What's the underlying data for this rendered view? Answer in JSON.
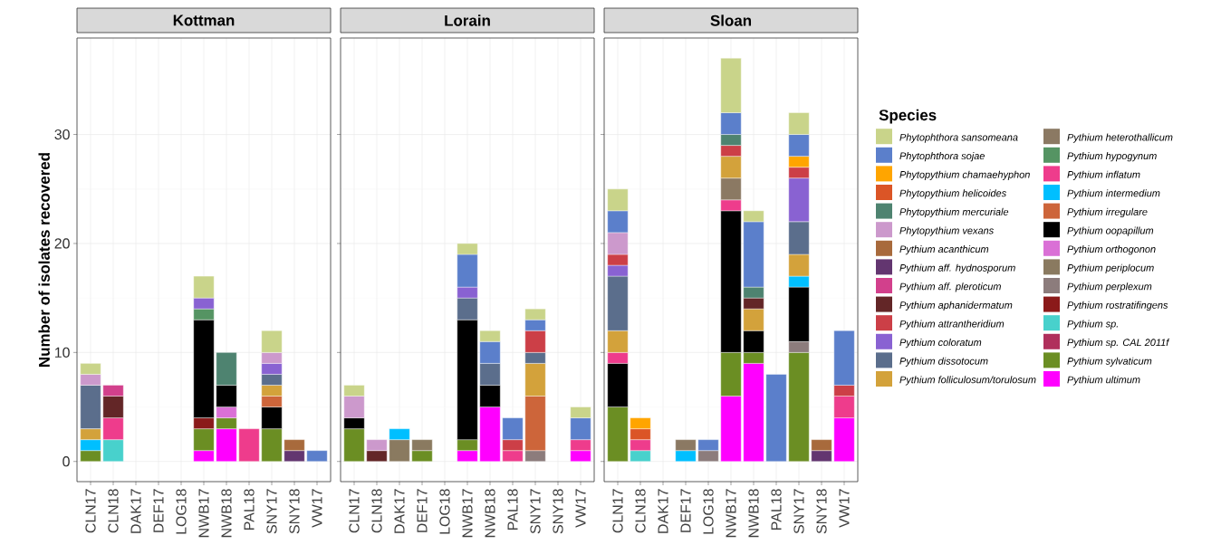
{
  "chart_data": [
    {
      "type": "bar",
      "title": "Kottman",
      "ylabel": "Number of isolates recovered",
      "stacked": true,
      "grid": true,
      "ylim": [
        -1.85,
        38.85
      ],
      "yticks": [
        0,
        10,
        20,
        30
      ],
      "categories": [
        "CLN17",
        "CLN18",
        "DAK17",
        "DEF17",
        "LOG18",
        "NWB17",
        "NWB18",
        "PAL18",
        "SNY17",
        "SNY18",
        "VW17"
      ],
      "series": [
        {
          "color": "#ff00ff",
          "values": [
            null,
            null,
            null,
            null,
            null,
            1,
            3,
            null,
            null,
            null,
            null
          ]
        },
        {
          "color": "#6b8e23",
          "values": [
            1,
            null,
            null,
            null,
            null,
            2,
            1,
            null,
            3,
            null,
            null
          ]
        },
        {
          "color": "#48d1cc",
          "values": [
            null,
            2,
            null,
            null,
            null,
            null,
            null,
            null,
            null,
            null,
            null
          ]
        },
        {
          "color": "#8b1a1a",
          "values": [
            null,
            null,
            null,
            null,
            null,
            1,
            null,
            null,
            null,
            null,
            null
          ]
        },
        {
          "color": "#da70d6",
          "values": [
            null,
            null,
            null,
            null,
            null,
            null,
            1,
            null,
            null,
            null,
            null
          ]
        },
        {
          "color": "#000000",
          "values": [
            null,
            null,
            null,
            null,
            null,
            9,
            2,
            null,
            2,
            null,
            null
          ]
        },
        {
          "color": "#cd653a",
          "values": [
            null,
            null,
            null,
            null,
            null,
            null,
            null,
            null,
            1,
            null,
            null
          ]
        },
        {
          "color": "#00bfff",
          "values": [
            1,
            null,
            null,
            null,
            null,
            null,
            null,
            null,
            null,
            null,
            null
          ]
        },
        {
          "color": "#ee3c8c",
          "values": [
            null,
            2,
            null,
            null,
            null,
            null,
            null,
            3,
            null,
            null,
            null
          ]
        },
        {
          "color": "#559463",
          "values": [
            null,
            null,
            null,
            null,
            null,
            1,
            null,
            null,
            null,
            null,
            null
          ]
        },
        {
          "color": "#d3a23b",
          "values": [
            1,
            null,
            null,
            null,
            null,
            null,
            null,
            null,
            1,
            null,
            null
          ]
        },
        {
          "color": "#5b6e8c",
          "values": [
            4,
            null,
            null,
            null,
            null,
            null,
            null,
            null,
            1,
            null,
            null
          ]
        },
        {
          "color": "#8962d2",
          "values": [
            null,
            null,
            null,
            null,
            null,
            1,
            null,
            null,
            1,
            null,
            null
          ]
        },
        {
          "color": "#632627",
          "values": [
            null,
            2,
            null,
            null,
            null,
            null,
            null,
            null,
            null,
            null,
            null
          ]
        },
        {
          "color": "#d2408c",
          "values": [
            null,
            1,
            null,
            null,
            null,
            null,
            null,
            null,
            null,
            null,
            null
          ]
        },
        {
          "color": "#633670",
          "values": [
            null,
            null,
            null,
            null,
            null,
            null,
            null,
            null,
            null,
            1,
            null
          ]
        },
        {
          "color": "#a86a3c",
          "values": [
            null,
            null,
            null,
            null,
            null,
            null,
            null,
            null,
            null,
            1,
            null
          ]
        },
        {
          "color": "#cc99cc",
          "values": [
            1,
            null,
            null,
            null,
            null,
            null,
            null,
            null,
            1,
            null,
            null
          ]
        },
        {
          "color": "#4e8370",
          "values": [
            null,
            null,
            null,
            null,
            null,
            null,
            3,
            null,
            null,
            null,
            null
          ]
        },
        {
          "color": "#5b7fcb",
          "values": [
            null,
            null,
            null,
            null,
            null,
            null,
            null,
            null,
            null,
            null,
            1
          ]
        },
        {
          "color": "#c9d48a",
          "values": [
            1,
            null,
            null,
            null,
            null,
            2,
            null,
            null,
            2,
            null,
            null
          ]
        }
      ]
    },
    {
      "type": "bar",
      "title": "Lorain",
      "stacked": true,
      "grid": true,
      "tick_labels": "x",
      "ylim": [
        -1.85,
        38.85
      ],
      "yticks": [
        0,
        10,
        20,
        30
      ],
      "categories": [
        "CLN17",
        "CLN18",
        "DAK17",
        "DEF17",
        "LOG18",
        "NWB17",
        "NWB18",
        "PAL18",
        "SNY17",
        "SNY18",
        "VW17"
      ],
      "series": [
        {
          "color": "#ff00ff",
          "values": [
            null,
            null,
            null,
            null,
            null,
            1,
            5,
            null,
            null,
            null,
            1
          ]
        },
        {
          "color": "#6b8e23",
          "values": [
            3,
            null,
            null,
            1,
            null,
            1,
            null,
            null,
            null,
            null,
            null
          ]
        },
        {
          "color": "#8c7c7c",
          "values": [
            null,
            null,
            null,
            null,
            null,
            null,
            null,
            null,
            1,
            null,
            null
          ]
        },
        {
          "color": "#8a7a60",
          "values": [
            null,
            null,
            2,
            1,
            null,
            null,
            null,
            null,
            null,
            null,
            null
          ]
        },
        {
          "color": "#000000",
          "values": [
            1,
            null,
            null,
            null,
            null,
            11,
            2,
            null,
            null,
            null,
            null
          ]
        },
        {
          "color": "#cd653a",
          "values": [
            null,
            null,
            null,
            null,
            null,
            null,
            null,
            null,
            5,
            null,
            null
          ]
        },
        {
          "color": "#00bfff",
          "values": [
            null,
            null,
            1,
            null,
            null,
            null,
            null,
            null,
            null,
            null,
            null
          ]
        },
        {
          "color": "#ee3c8c",
          "values": [
            null,
            null,
            null,
            null,
            null,
            null,
            null,
            1,
            null,
            null,
            1
          ]
        },
        {
          "color": "#d3a23b",
          "values": [
            null,
            null,
            null,
            null,
            null,
            null,
            null,
            null,
            3,
            null,
            null
          ]
        },
        {
          "color": "#5b6e8c",
          "values": [
            null,
            null,
            null,
            null,
            null,
            2,
            2,
            null,
            1,
            null,
            null
          ]
        },
        {
          "color": "#8962d2",
          "values": [
            null,
            null,
            null,
            null,
            null,
            1,
            null,
            null,
            null,
            null,
            null
          ]
        },
        {
          "color": "#cc3f47",
          "values": [
            null,
            null,
            null,
            null,
            null,
            null,
            null,
            1,
            2,
            null,
            null
          ]
        },
        {
          "color": "#632627",
          "values": [
            null,
            1,
            null,
            null,
            null,
            null,
            null,
            null,
            null,
            null,
            null
          ]
        },
        {
          "color": "#cc99cc",
          "values": [
            2,
            1,
            null,
            null,
            null,
            null,
            null,
            null,
            null,
            null,
            null
          ]
        },
        {
          "color": "#5b7fcb",
          "values": [
            null,
            null,
            null,
            null,
            null,
            3,
            2,
            2,
            1,
            null,
            2
          ]
        },
        {
          "color": "#c9d48a",
          "values": [
            1,
            null,
            null,
            null,
            null,
            1,
            1,
            null,
            1,
            null,
            1
          ]
        }
      ]
    },
    {
      "type": "bar",
      "title": "Sloan",
      "legend_title": "Species",
      "legend": "right",
      "stacked": true,
      "grid": true,
      "tick_labels": "x",
      "ylim": [
        -1.85,
        38.85
      ],
      "yticks": [
        0,
        10,
        20,
        30
      ],
      "categories": [
        "CLN17",
        "CLN18",
        "DAK17",
        "DEF17",
        "LOG18",
        "NWB17",
        "NWB18",
        "PAL18",
        "SNY17",
        "SNY18",
        "VW17"
      ],
      "series": [
        {
          "name": "Pythium ultimum",
          "color": "#ff00ff",
          "values": [
            null,
            null,
            null,
            null,
            null,
            6,
            9,
            null,
            null,
            null,
            4
          ]
        },
        {
          "name": "Pythium sylvaticum",
          "color": "#6b8e23",
          "values": [
            5,
            null,
            null,
            null,
            null,
            4,
            1,
            null,
            10,
            null,
            null
          ]
        },
        {
          "name": "Pythium sp. CAL 2011f",
          "color": "#b0305c",
          "values": [
            null,
            null,
            null,
            null,
            null,
            null,
            null,
            null,
            null,
            null,
            null
          ]
        },
        {
          "name": "Pythium sp.",
          "color": "#48d1cc",
          "values": [
            null,
            1,
            null,
            null,
            null,
            null,
            null,
            null,
            null,
            null,
            null
          ]
        },
        {
          "name": "Pythium rostratifingens",
          "color": "#8b1a1a",
          "values": [
            null,
            null,
            null,
            null,
            null,
            null,
            null,
            null,
            null,
            null,
            null
          ]
        },
        {
          "name": "Pythium perplexum",
          "color": "#8c7c7c",
          "values": [
            null,
            null,
            null,
            null,
            1,
            null,
            null,
            null,
            1,
            null,
            null
          ]
        },
        {
          "name": "Pythium periplocum",
          "color": "#8a7a60",
          "values": [
            null,
            null,
            null,
            null,
            null,
            null,
            null,
            null,
            null,
            null,
            null
          ]
        },
        {
          "name": "Pythium orthogonon",
          "color": "#da70d6",
          "values": [
            null,
            null,
            null,
            null,
            null,
            null,
            null,
            null,
            null,
            null,
            null
          ]
        },
        {
          "name": "Pythium oopapillum",
          "color": "#000000",
          "values": [
            4,
            null,
            null,
            null,
            null,
            13,
            2,
            null,
            5,
            null,
            null
          ]
        },
        {
          "name": "Pythium irregulare",
          "color": "#cd653a",
          "values": [
            null,
            null,
            null,
            null,
            null,
            null,
            null,
            null,
            null,
            null,
            null
          ]
        },
        {
          "name": "Pythium intermedium",
          "color": "#00bfff",
          "values": [
            null,
            null,
            null,
            1,
            null,
            null,
            null,
            null,
            1,
            null,
            null
          ]
        },
        {
          "name": "Pythium inflatum",
          "color": "#ee3c8c",
          "values": [
            1,
            1,
            null,
            null,
            null,
            1,
            null,
            null,
            null,
            null,
            2
          ]
        },
        {
          "name": "Pythium hypogynum",
          "color": "#559463",
          "values": [
            null,
            null,
            null,
            null,
            null,
            null,
            null,
            null,
            null,
            null,
            null
          ]
        },
        {
          "name": "Pythium heterothallicum",
          "color": "#8b7963",
          "values": [
            null,
            null,
            null,
            1,
            null,
            2,
            null,
            null,
            null,
            null,
            null
          ]
        },
        {
          "name": "Pythium folliculosum/torulosum",
          "color": "#d3a23b",
          "values": [
            2,
            null,
            null,
            null,
            null,
            2,
            2,
            null,
            2,
            null,
            null
          ]
        },
        {
          "name": "Pythium dissotocum",
          "color": "#5b6e8c",
          "values": [
            5,
            null,
            null,
            null,
            null,
            null,
            null,
            null,
            3,
            null,
            null
          ]
        },
        {
          "name": "Pythium coloratum",
          "color": "#8962d2",
          "values": [
            1,
            null,
            null,
            null,
            null,
            null,
            null,
            null,
            4,
            null,
            null
          ]
        },
        {
          "name": "Pythium attrantheridium",
          "color": "#cc3f47",
          "values": [
            1,
            null,
            null,
            null,
            null,
            1,
            null,
            null,
            1,
            null,
            1
          ]
        },
        {
          "name": "Pythium aphanidermatum",
          "color": "#632627",
          "values": [
            null,
            null,
            null,
            null,
            null,
            null,
            1,
            null,
            null,
            null,
            null
          ]
        },
        {
          "name": "Pythium aff. pleroticum",
          "color": "#d2408c",
          "values": [
            null,
            null,
            null,
            null,
            null,
            null,
            null,
            null,
            null,
            null,
            null
          ]
        },
        {
          "name": "Pythium aff. hydnosporum",
          "color": "#633670",
          "values": [
            null,
            null,
            null,
            null,
            null,
            null,
            null,
            null,
            null,
            1,
            null
          ]
        },
        {
          "name": "Pythium acanthicum",
          "color": "#a86a3c",
          "values": [
            null,
            null,
            null,
            null,
            null,
            null,
            null,
            null,
            null,
            1,
            null
          ]
        },
        {
          "name": "Phytopythium vexans",
          "color": "#cc99cc",
          "values": [
            2,
            null,
            null,
            null,
            null,
            null,
            null,
            null,
            null,
            null,
            null
          ]
        },
        {
          "name": "Phytopythium mercuriale",
          "color": "#4e8370",
          "values": [
            null,
            null,
            null,
            null,
            null,
            1,
            1,
            null,
            null,
            null,
            null
          ]
        },
        {
          "name": "Phytopythium helicoides",
          "color": "#db5526",
          "values": [
            null,
            1,
            null,
            null,
            null,
            null,
            null,
            null,
            null,
            null,
            null
          ]
        },
        {
          "name": "Phytopythium chamaehyphon",
          "color": "#ffa500",
          "values": [
            null,
            1,
            null,
            null,
            null,
            null,
            null,
            null,
            1,
            null,
            null
          ]
        },
        {
          "name": "Phytophthora sojae",
          "color": "#5b7fcb",
          "values": [
            2,
            null,
            null,
            null,
            1,
            2,
            6,
            8,
            2,
            null,
            5
          ]
        },
        {
          "name": "Phytophthora sansomeana",
          "color": "#c9d48a",
          "values": [
            2,
            null,
            null,
            null,
            null,
            5,
            1,
            null,
            2,
            null,
            null
          ]
        }
      ]
    }
  ]
}
